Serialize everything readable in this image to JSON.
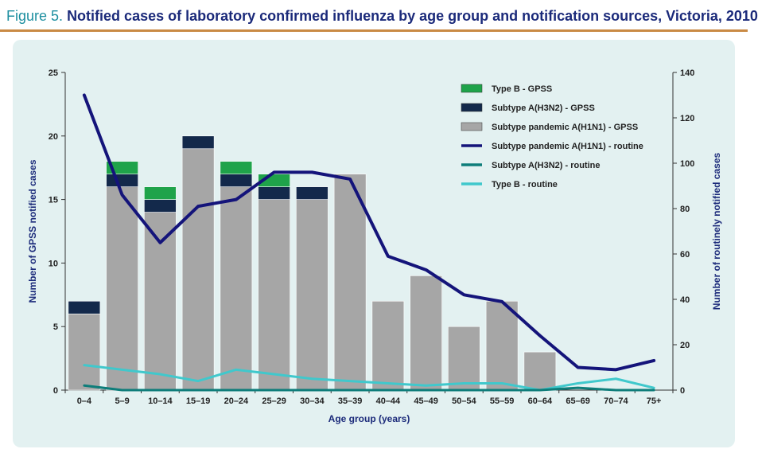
{
  "figure": {
    "number": "Figure 5.",
    "title": "Notified cases of laboratory confirmed influenza by age group and notification sources, Victoria, 2010"
  },
  "chart_data": {
    "type": "bar",
    "categories": [
      "0–4",
      "5–9",
      "10–14",
      "15–19",
      "20–24",
      "25–29",
      "30–34",
      "35–39",
      "40–44",
      "45–49",
      "50–54",
      "55–59",
      "60–64",
      "65–69",
      "70–74",
      "75+"
    ],
    "xlabel": "Age group (years)",
    "ylabel": "Number of GPSS notified cases",
    "y2label": "Number of routinely notified cases",
    "ylim": [
      0,
      25
    ],
    "y2lim": [
      0,
      140
    ],
    "yticks": [
      "0",
      "5",
      "10",
      "15",
      "20",
      "25"
    ],
    "y2ticks": [
      "0",
      "20",
      "40",
      "60",
      "80",
      "100",
      "120",
      "140"
    ],
    "stacked_bars": [
      {
        "name": "Subtype pandemic A(H1N1) - GPSS",
        "color": "#a6a6a6",
        "values": [
          6,
          16,
          14,
          19,
          16,
          15,
          15,
          17,
          7,
          9,
          5,
          7,
          3,
          0,
          0,
          0
        ]
      },
      {
        "name": "Subtype A(H3N2) - GPSS",
        "color": "#13294b",
        "values": [
          1,
          1,
          1,
          1,
          1,
          1,
          1,
          0,
          0,
          0,
          0,
          0,
          0,
          0,
          0,
          0
        ]
      },
      {
        "name": "Type B - GPSS",
        "color": "#1fa34a",
        "values": [
          0,
          1,
          1,
          0,
          1,
          1,
          0,
          0,
          0,
          0,
          0,
          0,
          0,
          0,
          0,
          0
        ]
      }
    ],
    "lines": [
      {
        "name": "Subtype pandemic A(H1N1) - routine",
        "color": "#14147a",
        "values": [
          130,
          86,
          65,
          81,
          84,
          96,
          96,
          93,
          59,
          53,
          42,
          39,
          24,
          10,
          9,
          13
        ]
      },
      {
        "name": "Subtype A(H3N2) - routine",
        "color": "#0e7d7a",
        "values": [
          2,
          0,
          0,
          0,
          0,
          0,
          0,
          0,
          0,
          0,
          0,
          0,
          0,
          1,
          0,
          0
        ]
      },
      {
        "name": "Type B - routine",
        "color": "#40c8cc",
        "values": [
          11,
          9,
          7,
          4,
          9,
          7,
          5,
          4,
          3,
          2,
          3,
          3,
          0,
          3,
          5,
          1
        ]
      }
    ],
    "legend_position": "top-right",
    "legend": [
      {
        "label": "Type B - GPSS",
        "kind": "box",
        "color": "#1fa34a"
      },
      {
        "label": "Subtype A(H3N2) - GPSS",
        "kind": "box",
        "color": "#13294b"
      },
      {
        "label": "Subtype pandemic A(H1N1) - GPSS",
        "kind": "box",
        "color": "#a6a6a6"
      },
      {
        "label": "Subtype pandemic A(H1N1) - routine",
        "kind": "line",
        "color": "#14147a"
      },
      {
        "label": "Subtype A(H3N2) - routine",
        "kind": "line",
        "color": "#0e7d7a"
      },
      {
        "label": "Type B - routine",
        "kind": "line",
        "color": "#40c8cc"
      }
    ]
  }
}
